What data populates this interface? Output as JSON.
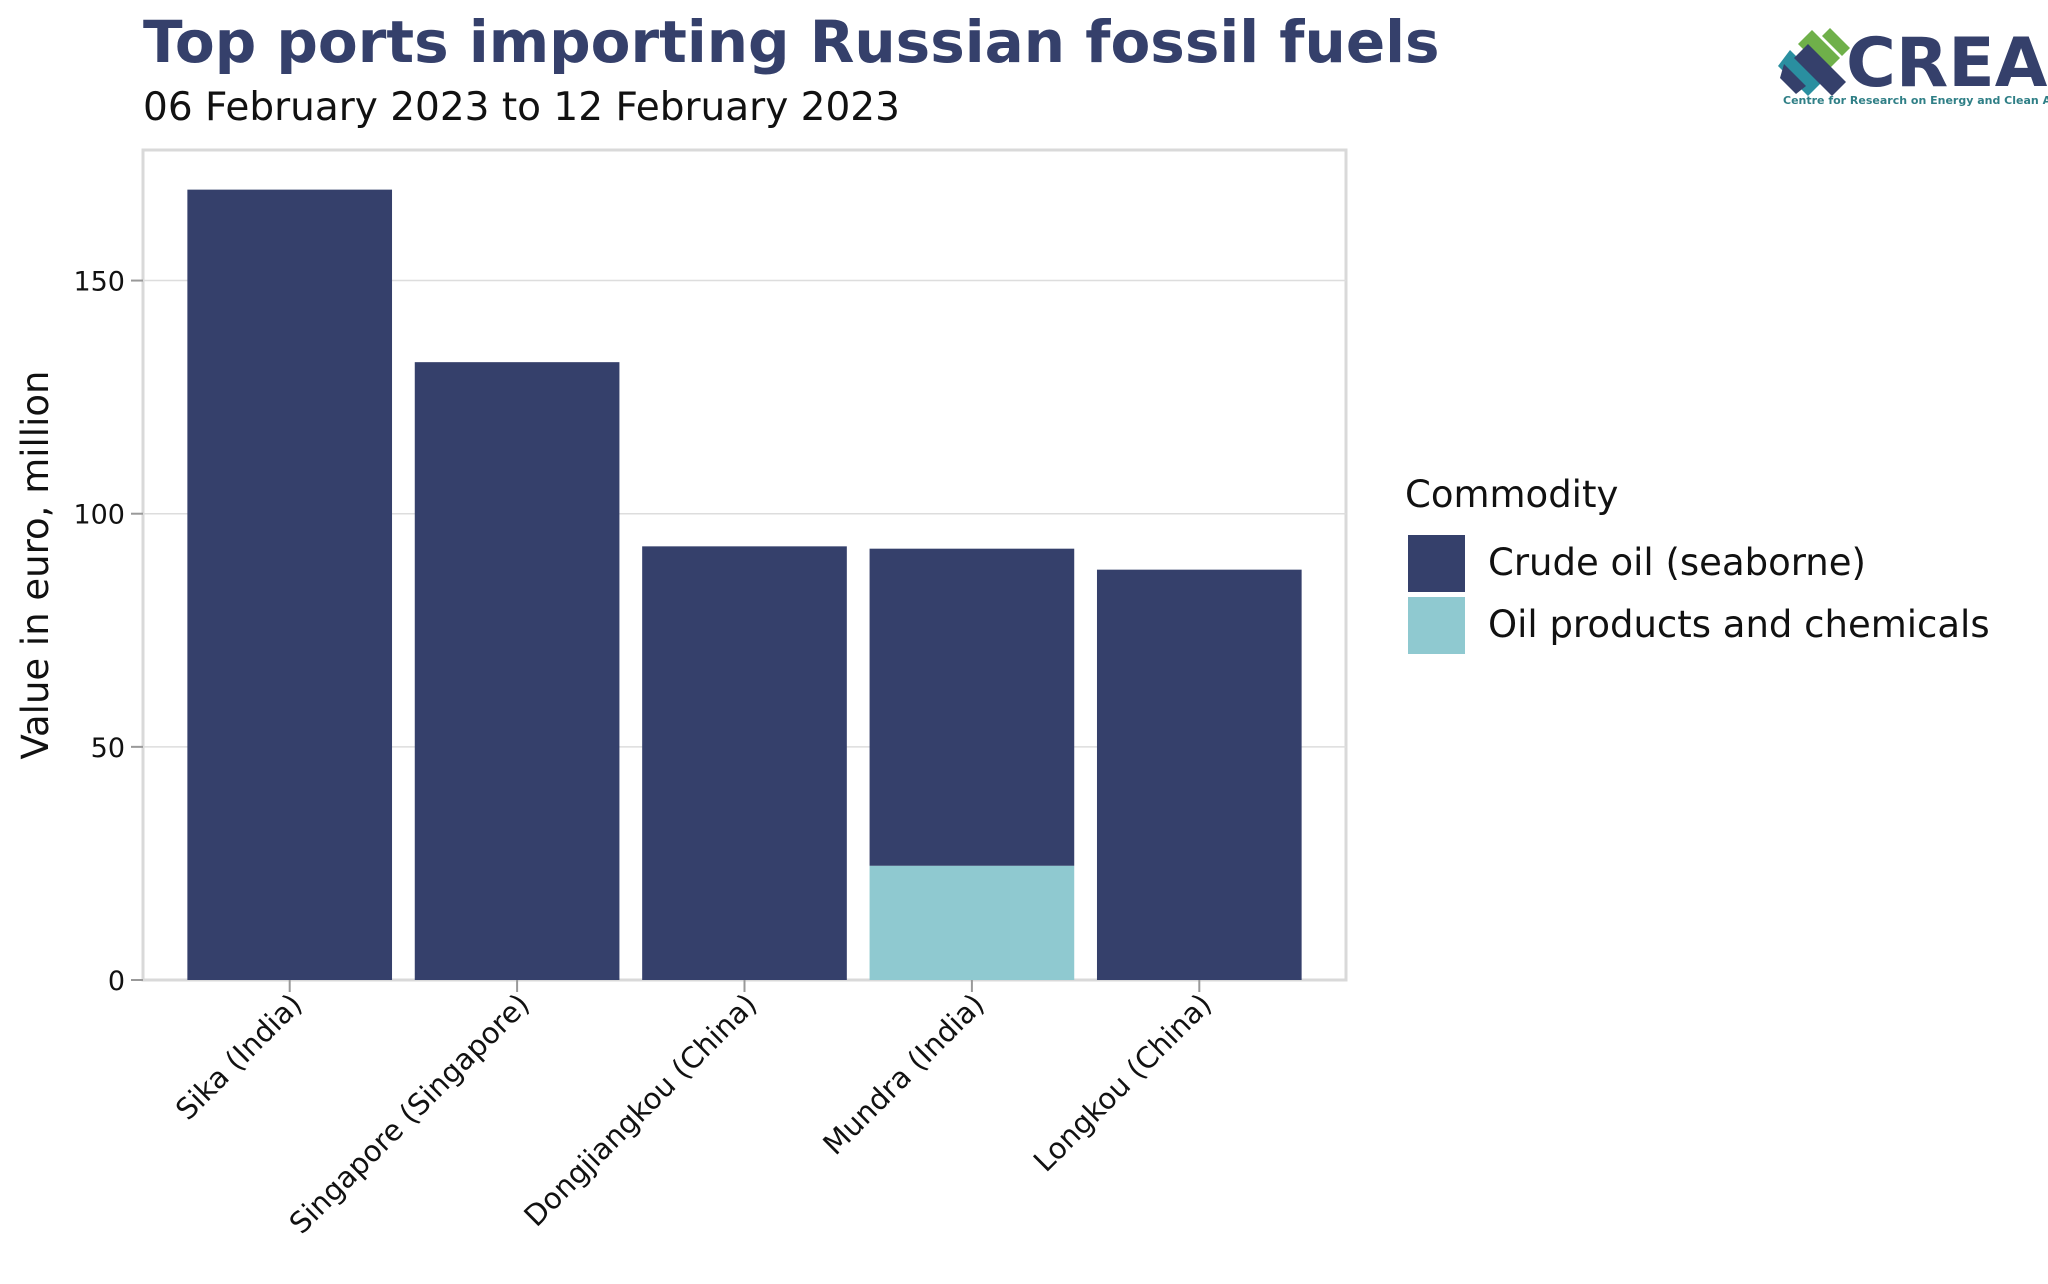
{
  "chart_data": {
    "type": "bar",
    "stacked": true,
    "title": "Top ports importing Russian fossil fuels",
    "subtitle": "06 February 2023 to 12 February 2023",
    "ylabel": "Value in euro, million",
    "xlabel": "",
    "ylim": [
      0,
      178
    ],
    "yticks": [
      0,
      50,
      100,
      150
    ],
    "grid": true,
    "categories": [
      "Sika (India)",
      "Singapore (Singapore)",
      "Dongjiangkou (China)",
      "Mundra (India)",
      "Longkou (China)"
    ],
    "series": [
      {
        "name": "Oil products and chemicals",
        "color": "#8fc9d0",
        "values": [
          0,
          0,
          0,
          24.5,
          0
        ]
      },
      {
        "name": "Crude oil (seaborne)",
        "color": "#35406b",
        "values": [
          169.5,
          132.5,
          93,
          68,
          88
        ]
      }
    ],
    "legend": {
      "title": "Commodity",
      "placement": "right",
      "entries": [
        "Crude oil (seaborne)",
        "Oil products and chemicals"
      ]
    }
  },
  "logo": {
    "text": "CREA",
    "tagline": "Centre for Research on Energy and Clean Air",
    "colors": [
      "#35406b",
      "#6fb04a",
      "#2a8fa0"
    ]
  }
}
